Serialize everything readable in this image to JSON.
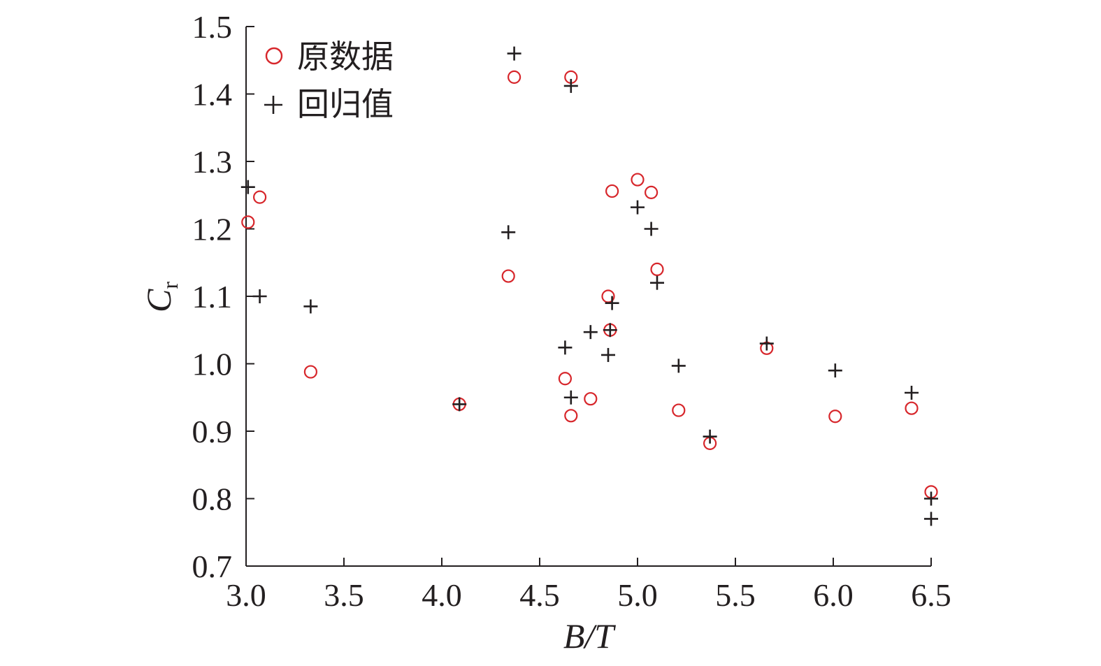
{
  "chart_data": {
    "type": "scatter",
    "xlabel": "B/T",
    "ylabel": {
      "main": "C",
      "sub": "r"
    },
    "xlim": [
      3.0,
      6.5
    ],
    "ylim": [
      0.7,
      1.5
    ],
    "xticks": [
      "3.0",
      "3.5",
      "4.0",
      "4.5",
      "5.0",
      "5.5",
      "6.0",
      "6.5"
    ],
    "yticks": [
      "0.7",
      "0.8",
      "0.9",
      "1.0",
      "1.1",
      "1.2",
      "1.3",
      "1.4",
      "1.5"
    ],
    "legend_position": "top-left",
    "series": [
      {
        "name": "原数据",
        "marker": "circle",
        "color": "#d7262b",
        "points": [
          [
            3.01,
            1.21
          ],
          [
            3.07,
            1.247
          ],
          [
            3.33,
            0.988
          ],
          [
            4.09,
            0.94
          ],
          [
            4.34,
            1.13
          ],
          [
            4.37,
            1.425
          ],
          [
            4.63,
            0.978
          ],
          [
            4.66,
            0.923
          ],
          [
            4.66,
            1.425
          ],
          [
            4.76,
            0.948
          ],
          [
            4.85,
            1.1
          ],
          [
            4.86,
            1.05
          ],
          [
            4.87,
            1.256
          ],
          [
            5.0,
            1.273
          ],
          [
            5.07,
            1.254
          ],
          [
            5.1,
            1.14
          ],
          [
            5.21,
            0.931
          ],
          [
            5.37,
            0.882
          ],
          [
            5.66,
            1.023
          ],
          [
            6.01,
            0.922
          ],
          [
            6.4,
            0.934
          ],
          [
            6.5,
            0.81
          ]
        ]
      },
      {
        "name": "回归值",
        "marker": "plus",
        "color": "#231f20",
        "points": [
          [
            3.01,
            1.262
          ],
          [
            3.07,
            1.1
          ],
          [
            3.33,
            1.085
          ],
          [
            4.09,
            0.94
          ],
          [
            4.34,
            1.195
          ],
          [
            4.37,
            1.46
          ],
          [
            4.63,
            1.024
          ],
          [
            4.66,
            0.95
          ],
          [
            4.66,
            1.412
          ],
          [
            4.76,
            1.047
          ],
          [
            4.85,
            1.013
          ],
          [
            4.86,
            1.05
          ],
          [
            4.87,
            1.09
          ],
          [
            5.0,
            1.232
          ],
          [
            5.07,
            1.2
          ],
          [
            5.1,
            1.12
          ],
          [
            5.21,
            0.997
          ],
          [
            5.37,
            0.892
          ],
          [
            5.66,
            1.03
          ],
          [
            6.01,
            0.99
          ],
          [
            6.4,
            0.957
          ],
          [
            6.5,
            0.8
          ],
          [
            6.5,
            0.77
          ]
        ]
      }
    ]
  }
}
